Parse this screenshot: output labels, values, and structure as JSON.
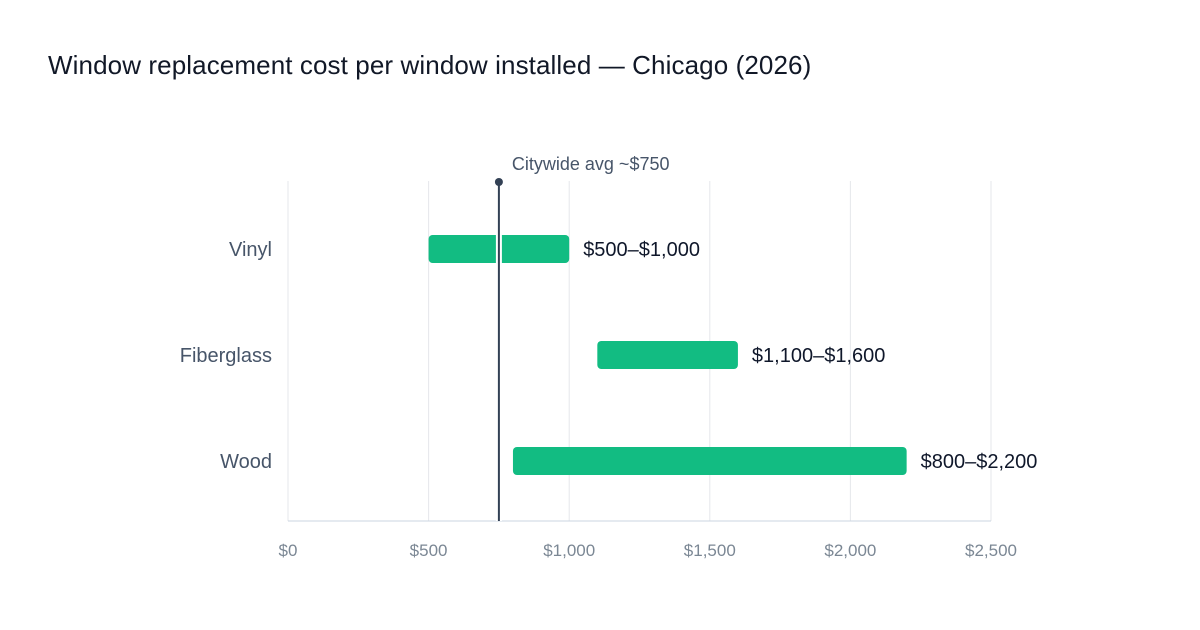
{
  "chart_data": {
    "type": "bar",
    "subtype": "floating-range-horizontal",
    "title": "Window replacement cost per window installed — Chicago (2026)",
    "xlabel": "",
    "ylabel": "",
    "categories": [
      "Vinyl",
      "Fiberglass",
      "Wood"
    ],
    "ranges": [
      {
        "category": "Vinyl",
        "low": 500,
        "high": 1000,
        "label": "$500–$1,000"
      },
      {
        "category": "Fiberglass",
        "low": 1100,
        "high": 1600,
        "label": "$1,100–$1,600"
      },
      {
        "category": "Wood",
        "low": 800,
        "high": 2200,
        "label": "$800–$2,200"
      }
    ],
    "xlim": [
      0,
      2500
    ],
    "xticks": [
      0,
      500,
      1000,
      1500,
      2000,
      2500
    ],
    "xtick_labels": [
      "$0",
      "$500",
      "$1,000",
      "$1,500",
      "$2,000",
      "$2,500"
    ],
    "reference_line": {
      "value": 750,
      "label": "Citywide avg ~$750"
    },
    "grid": "vertical",
    "legend": "none"
  },
  "colors": {
    "bar": "#12bc82",
    "title": "#111827",
    "category_label": "#475569",
    "value_label": "#0f172a",
    "tick_label": "#7b8794",
    "gridline": "#e5e7eb",
    "axis_line": "#cbd5e1",
    "reference_line": "#334155",
    "reference_label": "#475569"
  }
}
